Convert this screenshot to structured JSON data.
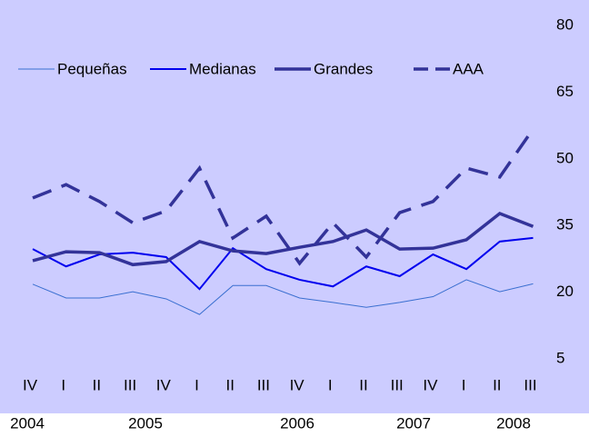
{
  "chart_data": {
    "type": "line",
    "categories": [
      "IV",
      "I",
      "II",
      "III",
      "IV",
      "I",
      "II",
      "III",
      "IV",
      "I",
      "II",
      "III",
      "IV",
      "I",
      "II",
      "III"
    ],
    "years": [
      "2004",
      "2005",
      "2006",
      "2007",
      "2008"
    ],
    "series": [
      {
        "name": "Pequeñas",
        "color": "#3a6fd0",
        "width": 1,
        "dashed": false,
        "values": [
          21.8,
          18.7,
          18.7,
          20.1,
          18.5,
          15,
          21.5,
          21.5,
          18.7,
          17.7,
          16.6,
          17.7,
          19,
          22.8,
          20.1,
          21.9
        ]
      },
      {
        "name": "Medianas",
        "color": "#0000ee",
        "width": 2,
        "dashed": false,
        "values": [
          29.7,
          25.8,
          28.5,
          28.9,
          27.9,
          20.7,
          29.9,
          25.2,
          22.8,
          21.3,
          25.8,
          23.6,
          28.5,
          25.2,
          31.4,
          32.2
        ]
      },
      {
        "name": "Grandes",
        "color": "#333399",
        "width": 3.5,
        "dashed": false,
        "values": [
          27.1,
          29.1,
          28.9,
          26.2,
          26.9,
          31.4,
          29.3,
          28.7,
          30.1,
          31.4,
          34,
          29.7,
          29.9,
          31.8,
          37.7,
          34.8
        ]
      },
      {
        "name": "AAA",
        "color": "#333399",
        "width": 3.5,
        "dashed": true,
        "values": [
          41.2,
          44.2,
          40.4,
          35.6,
          38.3,
          47.9,
          32.2,
          37.1,
          26.5,
          35.6,
          27.9,
          37.9,
          40.4,
          47.9,
          45.9,
          56.7
        ]
      }
    ],
    "ylim": [
      -5,
      85
    ],
    "yticks": [
      5,
      20,
      35,
      50,
      65,
      80
    ],
    "y_axis_side": "right",
    "grid": false,
    "legend": "top"
  }
}
